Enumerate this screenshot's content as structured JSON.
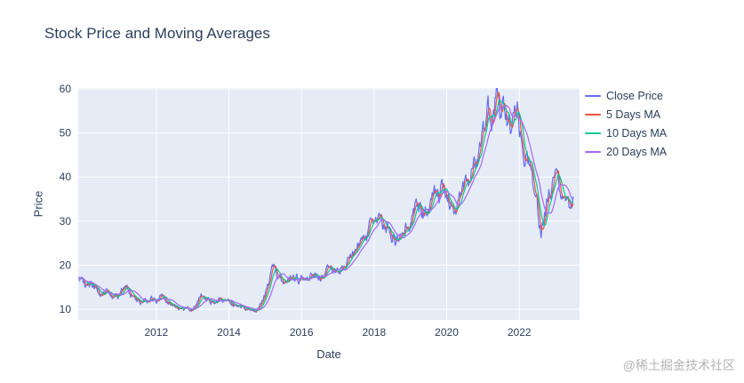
{
  "title": "Stock Price and Moving Averages",
  "watermark": "@稀土掘金技术社区",
  "chart_data": {
    "type": "line",
    "title": "Stock Price and Moving Averages",
    "xlabel": "Date",
    "ylabel": "Price",
    "x_range": [
      2009.85,
      2023.66
    ],
    "y_range": [
      7.58,
      60.2
    ],
    "x_ticks": [
      2012,
      2014,
      2016,
      2018,
      2020,
      2022
    ],
    "y_ticks": [
      10,
      20,
      30,
      40,
      50,
      60
    ],
    "grid": true,
    "plot_bg": "#e5ecf6",
    "grid_color": "#ffffff",
    "text_color": "#2a3f5f",
    "legend_position": "right",
    "legend": [
      {
        "label": "Close Price",
        "color": "#636efa"
      },
      {
        "label": "5 Days MA",
        "color": "#ef553b"
      },
      {
        "label": "10 Days MA",
        "color": "#00cc96"
      },
      {
        "label": "20 Days MA",
        "color": "#ab63fa"
      }
    ],
    "ma_windows": [
      5,
      10,
      20
    ],
    "close_price_anchors": [
      [
        2009.87,
        17.2
      ],
      [
        2010.0,
        16.0
      ],
      [
        2010.1,
        15.3
      ],
      [
        2010.2,
        16.3
      ],
      [
        2010.35,
        14.6
      ],
      [
        2010.5,
        13.6
      ],
      [
        2010.65,
        14.8
      ],
      [
        2010.8,
        13.2
      ],
      [
        2010.95,
        13.0
      ],
      [
        2011.1,
        14.4
      ],
      [
        2011.25,
        13.8
      ],
      [
        2011.4,
        12.6
      ],
      [
        2011.55,
        12.2
      ],
      [
        2011.7,
        11.8
      ],
      [
        2011.85,
        12.8
      ],
      [
        2012.0,
        12.2
      ],
      [
        2012.15,
        12.8
      ],
      [
        2012.3,
        11.6
      ],
      [
        2012.45,
        11.0
      ],
      [
        2012.6,
        10.2
      ],
      [
        2012.75,
        9.9
      ],
      [
        2012.9,
        10.1
      ],
      [
        2013.05,
        10.8
      ],
      [
        2013.2,
        12.6
      ],
      [
        2013.3,
        13.4
      ],
      [
        2013.45,
        12.0
      ],
      [
        2013.6,
        11.6
      ],
      [
        2013.75,
        12.1
      ],
      [
        2013.9,
        11.3
      ],
      [
        2014.05,
        11.0
      ],
      [
        2014.2,
        10.4
      ],
      [
        2014.35,
        10.1
      ],
      [
        2014.5,
        9.9
      ],
      [
        2014.65,
        9.9
      ],
      [
        2014.8,
        10.3
      ],
      [
        2014.9,
        11.6
      ],
      [
        2015.0,
        13.8
      ],
      [
        2015.1,
        16.5
      ],
      [
        2015.2,
        19.2
      ],
      [
        2015.3,
        18.2
      ],
      [
        2015.4,
        17.1
      ],
      [
        2015.55,
        16.4
      ],
      [
        2015.7,
        17.6
      ],
      [
        2015.85,
        17.2
      ],
      [
        2016.0,
        16.5
      ],
      [
        2016.15,
        17.4
      ],
      [
        2016.3,
        17.9
      ],
      [
        2016.45,
        17.5
      ],
      [
        2016.6,
        18.0
      ],
      [
        2016.75,
        19.0
      ],
      [
        2016.9,
        19.4
      ],
      [
        2017.05,
        19.4
      ],
      [
        2017.2,
        20.2
      ],
      [
        2017.35,
        21.5
      ],
      [
        2017.5,
        24.0
      ],
      [
        2017.65,
        25.8
      ],
      [
        2017.8,
        26.8
      ],
      [
        2017.95,
        29.0
      ],
      [
        2018.05,
        31.5
      ],
      [
        2018.12,
        33.0
      ],
      [
        2018.25,
        29.5
      ],
      [
        2018.4,
        28.0
      ],
      [
        2018.55,
        26.5
      ],
      [
        2018.65,
        25.8
      ],
      [
        2018.8,
        26.8
      ],
      [
        2018.95,
        28.5
      ],
      [
        2019.1,
        32.0
      ],
      [
        2019.2,
        34.8
      ],
      [
        2019.35,
        32.2
      ],
      [
        2019.5,
        34.2
      ],
      [
        2019.65,
        36.6
      ],
      [
        2019.75,
        35.4
      ],
      [
        2019.9,
        37.6
      ],
      [
        2020.0,
        36.2
      ],
      [
        2020.1,
        33.5
      ],
      [
        2020.2,
        30.8
      ],
      [
        2020.35,
        34.5
      ],
      [
        2020.5,
        37.6
      ],
      [
        2020.6,
        38.4
      ],
      [
        2020.75,
        42.2
      ],
      [
        2020.9,
        44.4
      ],
      [
        2021.0,
        48.5
      ],
      [
        2021.1,
        52.5
      ],
      [
        2021.2,
        55.5
      ],
      [
        2021.28,
        53.0
      ],
      [
        2021.38,
        57.8
      ],
      [
        2021.48,
        52.8
      ],
      [
        2021.58,
        55.2
      ],
      [
        2021.68,
        52.0
      ],
      [
        2021.78,
        50.2
      ],
      [
        2021.88,
        52.6
      ],
      [
        2021.98,
        51.8
      ],
      [
        2022.08,
        46.5
      ],
      [
        2022.18,
        43.5
      ],
      [
        2022.3,
        40.5
      ],
      [
        2022.4,
        36.5
      ],
      [
        2022.5,
        32.5
      ],
      [
        2022.6,
        26.8
      ],
      [
        2022.7,
        31.5
      ],
      [
        2022.8,
        35.8
      ],
      [
        2022.9,
        37.2
      ],
      [
        2023.0,
        39.8
      ],
      [
        2023.1,
        36.5
      ],
      [
        2023.2,
        33.2
      ],
      [
        2023.3,
        34.6
      ],
      [
        2023.4,
        32.2
      ],
      [
        2023.5,
        34.3
      ]
    ]
  }
}
